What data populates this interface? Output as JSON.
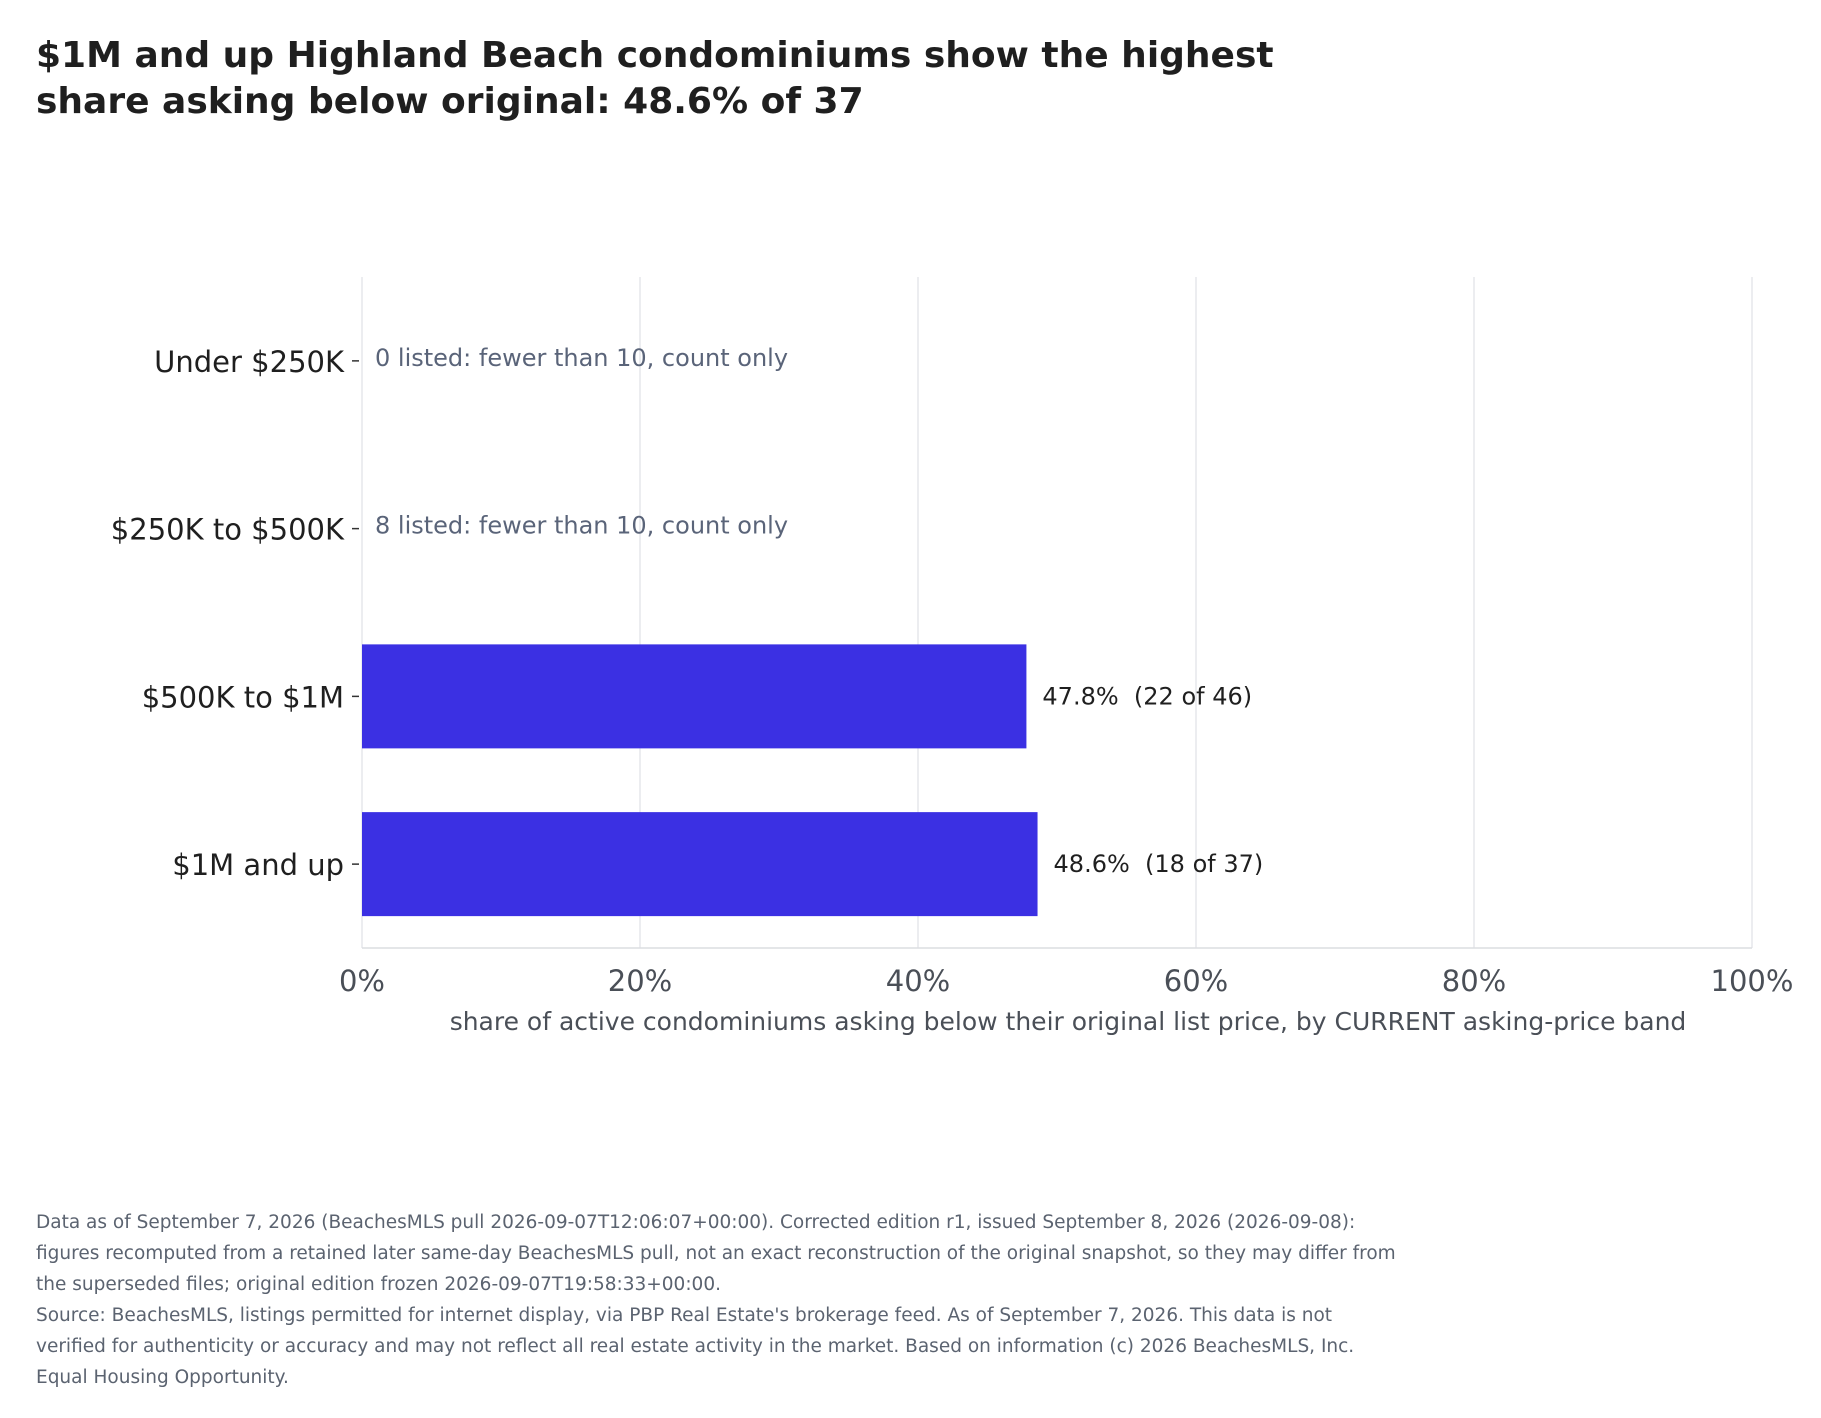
{
  "title": "$1M and up Highland Beach condominiums show the highest share asking below original: 48.6% of 37",
  "chart_data": {
    "type": "bar",
    "orientation": "horizontal",
    "categories": [
      "Under $250K",
      "$250K to $500K",
      "$500K to $1M",
      "$1M and up"
    ],
    "values": [
      null,
      null,
      47.8,
      48.6
    ],
    "labels": [
      "0 listed: fewer than 10, count only",
      "8 listed: fewer than 10, count only",
      "47.8%  (22 of 46)",
      "48.6%  (18 of 37)"
    ],
    "xlabel": "share of active condominiums asking below their original list price, by CURRENT asking-price band",
    "xlim": [
      0,
      100
    ],
    "xticks": [
      0,
      20,
      40,
      60,
      80,
      100
    ],
    "xtick_labels": [
      "0%",
      "20%",
      "40%",
      "60%",
      "80%",
      "100%"
    ],
    "grid": "vertical",
    "bar_color": "#3b30e3",
    "suppressed_label_color": "#5a6479"
  },
  "footnotes": [
    "Data as of September 7, 2026 (BeachesMLS pull 2026-09-07T12:06:07+00:00). Corrected edition r1, issued September 8, 2026 (2026-09-08): figures recomputed from a retained later same-day BeachesMLS pull, not an exact reconstruction of the original snapshot, so they may differ from the superseded files; original edition frozen 2026-09-07T19:58:33+00:00.",
    "Source: BeachesMLS, listings permitted for internet display, via PBP Real Estate's brokerage feed. As of September 7, 2026. This data is not verified for authenticity or accuracy and may not reflect all real estate activity in the market. Based on information (c) 2026 BeachesMLS, Inc. Equal Housing Opportunity."
  ]
}
